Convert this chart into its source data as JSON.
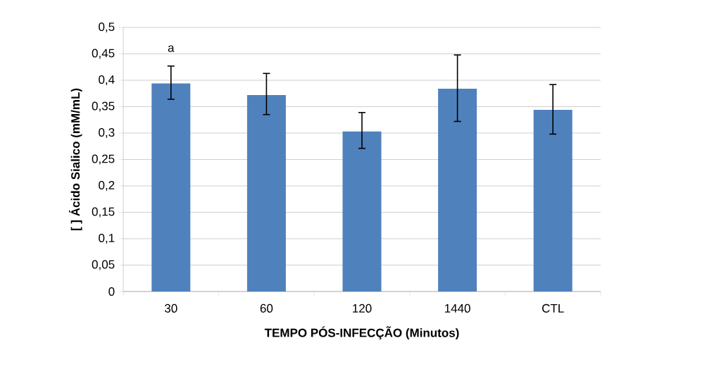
{
  "chart_data": {
    "type": "bar",
    "xlabel": "TEMPO PÓS-INFECÇÃO (Minutos)",
    "ylabel": "[ ] Ácido Sialico (mM/mL)",
    "categories": [
      "30",
      "60",
      "120",
      "1440",
      "CTL"
    ],
    "values": [
      0.394,
      0.372,
      0.303,
      0.384,
      0.344
    ],
    "errors": [
      [
        0.363,
        0.428
      ],
      [
        0.334,
        0.414
      ],
      [
        0.27,
        0.34
      ],
      [
        0.321,
        0.449
      ],
      [
        0.297,
        0.393
      ]
    ],
    "color": "#4f81bd",
    "ylim": [
      0,
      0.5
    ],
    "yticks": [
      0,
      {
        "value": 0.05,
        "label": "0,05"
      },
      {
        "value": 0.1,
        "label": "0,1"
      },
      {
        "value": 0.15,
        "label": "0,15"
      },
      {
        "value": 0.2,
        "label": "0,2"
      },
      {
        "value": 0.25,
        "label": "0,25"
      },
      {
        "value": 0.3,
        "label": "0,3"
      },
      {
        "value": 0.35,
        "label": "0,35"
      },
      {
        "value": 0.4,
        "label": "0,4"
      },
      {
        "value": 0.45,
        "label": "0,45"
      },
      {
        "value": 0.5,
        "label": "0,5"
      }
    ],
    "grid": "y",
    "annotations": [
      "a"
    ]
  }
}
